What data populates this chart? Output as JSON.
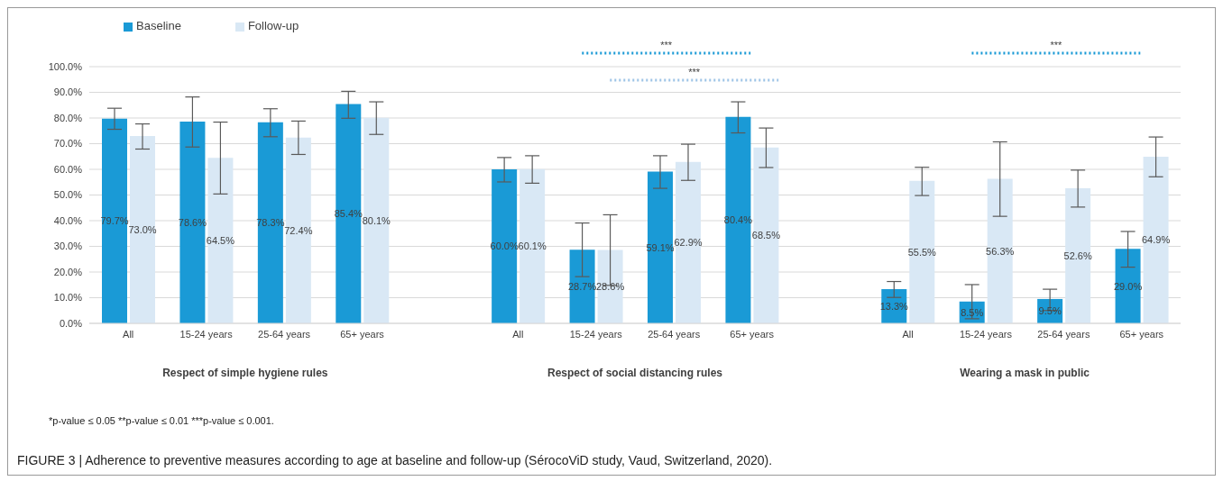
{
  "chart_data": {
    "type": "bar",
    "categories": [
      "All",
      "15-24 years",
      "25-64 years",
      "65+ years",
      null,
      "All",
      "15-24 years",
      "25-64 years",
      "65+ years",
      null,
      "All",
      "15-24 years",
      "25-64 years",
      "65+ years"
    ],
    "series": [
      {
        "name": "Baseline",
        "color": "#1a9ad6",
        "values": [
          79.7,
          78.6,
          78.3,
          85.4,
          null,
          60.0,
          28.7,
          59.1,
          80.4,
          null,
          13.3,
          8.5,
          9.5,
          29.0
        ],
        "value_labels": [
          "79.7%",
          "78.6%",
          "78.3%",
          "85.4%",
          null,
          "60.0%",
          "28.7%",
          "59.1%",
          "80.4%",
          null,
          "13.3%",
          "8.5%",
          "9.5%",
          "29.0%"
        ],
        "errors": [
          [
            75.6,
            83.8
          ],
          [
            68.7,
            88.2
          ],
          [
            72.7,
            83.6
          ],
          [
            79.9,
            90.4
          ],
          null,
          [
            55.1,
            64.6
          ],
          [
            18.2,
            39.1
          ],
          [
            52.6,
            65.3
          ],
          [
            74.2,
            86.3
          ],
          null,
          [
            10.1,
            16.3
          ],
          [
            1.8,
            15.1
          ],
          [
            5.0,
            13.3
          ],
          [
            21.9,
            35.8
          ]
        ]
      },
      {
        "name": "Follow-up",
        "color": "#d9e8f5",
        "values": [
          73.0,
          64.5,
          72.4,
          80.1,
          null,
          60.1,
          28.6,
          62.9,
          68.5,
          null,
          55.5,
          56.3,
          52.6,
          64.9
        ],
        "value_labels": [
          "73.0%",
          "64.5%",
          "72.4%",
          "80.1%",
          null,
          "60.1%",
          "28.6%",
          "62.9%",
          "68.5%",
          null,
          "55.5%",
          "56.3%",
          "52.6%",
          "64.9%"
        ],
        "errors": [
          [
            67.9,
            77.7
          ],
          [
            50.4,
            78.4
          ],
          [
            65.8,
            78.8
          ],
          [
            73.6,
            86.3
          ],
          null,
          [
            54.6,
            65.3
          ],
          [
            14.8,
            42.3
          ],
          [
            55.7,
            69.8
          ],
          [
            60.7,
            76.1
          ],
          null,
          [
            49.8,
            60.8
          ],
          [
            41.7,
            70.7
          ],
          [
            45.3,
            59.7
          ],
          [
            57.1,
            72.6
          ]
        ]
      }
    ],
    "ylim": [
      0,
      100
    ],
    "yticks": [
      {
        "value": 0,
        "label": "0.0%"
      },
      {
        "value": 10,
        "label": "10.0%"
      },
      {
        "value": 20,
        "label": "20.0%"
      },
      {
        "value": 30,
        "label": "30.0%"
      },
      {
        "value": 40,
        "label": "40.0%"
      },
      {
        "value": 50,
        "label": "50.0%"
      },
      {
        "value": 60,
        "label": "60.0%"
      },
      {
        "value": 70,
        "label": "70.0%"
      },
      {
        "value": 80,
        "label": "80.0%"
      },
      {
        "value": 90,
        "label": "90.0%"
      },
      {
        "value": 100,
        "label": "100.0%"
      }
    ],
    "grid": "y",
    "legend": "top left",
    "annotations": [
      "Respect of simple hygiene rules",
      "Respect of social distancing rules",
      "Wearing a mask in public",
      "***",
      "***",
      "***",
      "*p-value ≤ 0.05 **p-value ≤ 0.01 ***p-value ≤ 0.001.",
      "FIGURE 3 | Adherence to preventive measures according to age at baseline and follow-up (SérocoViD study, Vaud, Switzerland, 2020)."
    ]
  }
}
